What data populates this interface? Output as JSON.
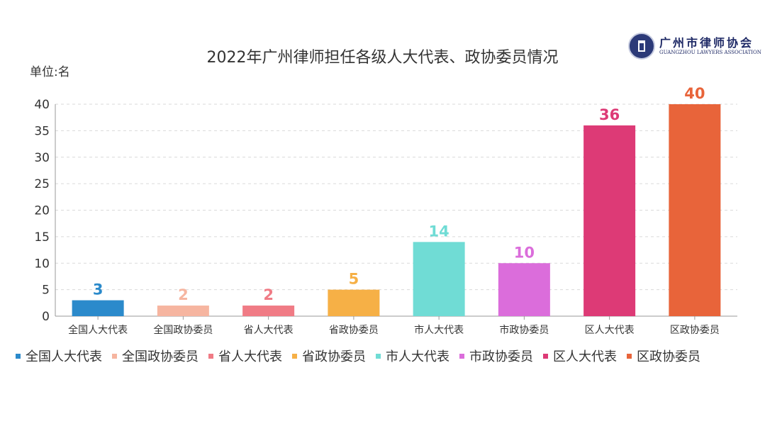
{
  "chart_data": {
    "type": "bar",
    "title": "2022年广州律师担任各级人大代表、政协委员情况",
    "unit_label": "单位:名",
    "categories": [
      "全国人大代表",
      "全国政协委员",
      "省人大代表",
      "省政协委员",
      "市人大代表",
      "市政协委员",
      "区人大代表",
      "区政协委员"
    ],
    "values": [
      3,
      2,
      2,
      5,
      14,
      10,
      36,
      40
    ],
    "colors": [
      "#2b8acb",
      "#f6b5a0",
      "#f07b85",
      "#f6b046",
      "#70dcd5",
      "#db6ddb",
      "#dd3a76",
      "#e8643a"
    ],
    "yticks": [
      "0",
      "5",
      "10",
      "15",
      "20",
      "25",
      "30",
      "35",
      "40"
    ],
    "ylim": [
      0,
      40
    ],
    "grid": true,
    "legend_position": "bottom"
  },
  "logo": {
    "name_cn": "广州市律师协会",
    "name_en": "GUANGZHOU LAWYERS ASSOCIATION",
    "icon": "lawyers-association-seal-icon"
  }
}
